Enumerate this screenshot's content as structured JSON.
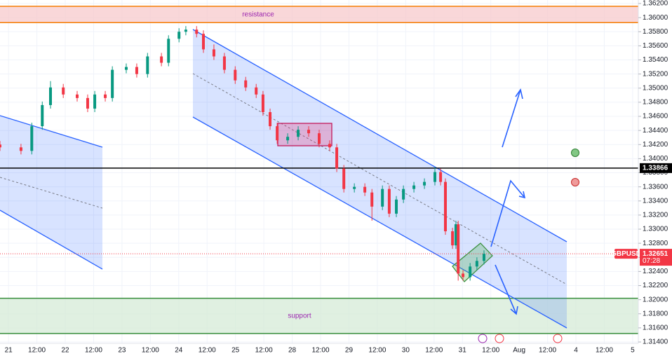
{
  "chart_data": {
    "type": "candlestick",
    "symbol": "GBPUSD",
    "x": [
      -0.3,
      0.44,
      0.82,
      1.19,
      1.48,
      1.93,
      2.42,
      2.79,
      3.04,
      3.41,
      3.66,
      4.15,
      4.52,
      4.9,
      5.39,
      5.64,
      6.01,
      6.25,
      6.63,
      6.87,
      7.24,
      7.61,
      7.99,
      8.36,
      8.73,
      8.97,
      9.22,
      9.47,
      9.84,
      10.21,
      10.58,
      10.95,
      11.32,
      11.57,
      11.82,
      12.19,
      12.56,
      12.81,
      13.18,
      13.42,
      13.67,
      13.92,
      14.29,
      14.66,
      15.03,
      15.23,
      15.4,
      15.65,
      15.77,
      15.85,
      16.02,
      16.27,
      16.51,
      16.76
    ],
    "open": [
      1.342,
      1.3416,
      1.3411,
      1.3446,
      1.3476,
      1.3501,
      1.3491,
      1.3486,
      1.3471,
      1.3491,
      1.3486,
      1.3526,
      1.353,
      1.352,
      1.3545,
      1.3536,
      1.357,
      1.358,
      1.3583,
      1.3577,
      1.3555,
      1.3545,
      1.3526,
      1.3511,
      1.3501,
      1.3491,
      1.3466,
      1.3446,
      1.3426,
      1.3431,
      1.3441,
      1.3436,
      1.3421,
      1.3416,
      1.3386,
      1.3357,
      1.336,
      1.3352,
      1.3332,
      1.3357,
      1.3322,
      1.3342,
      1.3357,
      1.3362,
      1.3367,
      1.3381,
      1.3367,
      1.3297,
      1.3277,
      1.3307,
      1.3237,
      1.3232,
      1.3247,
      1.3255
    ],
    "high": [
      1.3425,
      1.3421,
      1.3451,
      1.3481,
      1.351,
      1.3506,
      1.3496,
      1.3491,
      1.3496,
      1.3496,
      1.3531,
      1.3535,
      1.3535,
      1.355,
      1.355,
      1.3575,
      1.3585,
      1.3588,
      1.3588,
      1.3582,
      1.3562,
      1.355,
      1.3531,
      1.3516,
      1.3506,
      1.3496,
      1.3471,
      1.3451,
      1.3436,
      1.3446,
      1.3446,
      1.3441,
      1.3426,
      1.3421,
      1.3391,
      1.3365,
      1.3365,
      1.3357,
      1.3362,
      1.3362,
      1.3347,
      1.3362,
      1.3367,
      1.3372,
      1.3388,
      1.3386,
      1.3372,
      1.3302,
      1.3312,
      1.3312,
      1.3242,
      1.3252,
      1.326,
      1.327
    ],
    "low": [
      1.3411,
      1.3406,
      1.3406,
      1.3441,
      1.3471,
      1.3486,
      1.3481,
      1.3466,
      1.3466,
      1.3481,
      1.3481,
      1.3521,
      1.3515,
      1.3515,
      1.3531,
      1.3531,
      1.3565,
      1.3575,
      1.3572,
      1.355,
      1.354,
      1.3521,
      1.3506,
      1.3496,
      1.3486,
      1.3461,
      1.3441,
      1.3421,
      1.3421,
      1.3426,
      1.3431,
      1.3416,
      1.3411,
      1.3381,
      1.3352,
      1.3352,
      1.3347,
      1.3312,
      1.3327,
      1.3317,
      1.3317,
      1.3337,
      1.3352,
      1.3357,
      1.3362,
      1.3362,
      1.3292,
      1.3272,
      1.3272,
      1.3227,
      1.3227,
      1.3227,
      1.3242,
      1.325
    ],
    "close": [
      1.3416,
      1.3411,
      1.3446,
      1.3476,
      1.3501,
      1.3491,
      1.3486,
      1.3471,
      1.3491,
      1.3486,
      1.3526,
      1.353,
      1.352,
      1.3545,
      1.3536,
      1.357,
      1.358,
      1.3583,
      1.3577,
      1.3555,
      1.3545,
      1.3526,
      1.3511,
      1.3501,
      1.3491,
      1.3466,
      1.3446,
      1.3426,
      1.3431,
      1.3441,
      1.3436,
      1.3421,
      1.3416,
      1.3386,
      1.3357,
      1.336,
      1.3352,
      1.3332,
      1.3357,
      1.3322,
      1.3342,
      1.3357,
      1.3362,
      1.3367,
      1.3381,
      1.3367,
      1.3297,
      1.3277,
      1.3307,
      1.3237,
      1.3232,
      1.3247,
      1.3255,
      1.3265
    ],
    "up_color": "#089981",
    "down_color": "#f23645",
    "xlim": [
      -0.3,
      22.2
    ],
    "xticks": [
      {
        "value": 0,
        "label": "21"
      },
      {
        "value": 1,
        "label": "12:00"
      },
      {
        "value": 2,
        "label": "22"
      },
      {
        "value": 3,
        "label": "12:00"
      },
      {
        "value": 4,
        "label": "23"
      },
      {
        "value": 5,
        "label": "12:00"
      },
      {
        "value": 6,
        "label": "24"
      },
      {
        "value": 7,
        "label": "12:00"
      },
      {
        "value": 8,
        "label": "25"
      },
      {
        "value": 9,
        "label": "12:00"
      },
      {
        "value": 10,
        "label": "28"
      },
      {
        "value": 11,
        "label": "12:00"
      },
      {
        "value": 12,
        "label": "29"
      },
      {
        "value": 13,
        "label": "12:00"
      },
      {
        "value": 14,
        "label": "30"
      },
      {
        "value": 15,
        "label": "12:00"
      },
      {
        "value": 16,
        "label": "31"
      },
      {
        "value": 17,
        "label": "12:00"
      },
      {
        "value": 18,
        "label": "Aug"
      },
      {
        "value": 19,
        "label": "12:00"
      },
      {
        "value": 20,
        "label": "4"
      },
      {
        "value": 21,
        "label": "12:00"
      },
      {
        "value": 22,
        "label": "5"
      }
    ],
    "ylim": [
      1.3138,
      1.3625
    ],
    "yticks": [
      {
        "value": 1.314,
        "label": "1.31400"
      },
      {
        "value": 1.316,
        "label": "1.31600"
      },
      {
        "value": 1.318,
        "label": "1.31800"
      },
      {
        "value": 1.32,
        "label": "1.32000"
      },
      {
        "value": 1.322,
        "label": "1.32200"
      },
      {
        "value": 1.324,
        "label": "1.32400"
      },
      {
        "value": 1.326,
        "label": "1.32600"
      },
      {
        "value": 1.328,
        "label": "1.32800"
      },
      {
        "value": 1.33,
        "label": "1.33000"
      },
      {
        "value": 1.332,
        "label": "1.33200"
      },
      {
        "value": 1.334,
        "label": "1.33400"
      },
      {
        "value": 1.336,
        "label": "1.33600"
      },
      {
        "value": 1.338,
        "label": "1.33800"
      },
      {
        "value": 1.34,
        "label": "1.34000"
      },
      {
        "value": 1.342,
        "label": "1.34200"
      },
      {
        "value": 1.344,
        "label": "1.34400"
      },
      {
        "value": 1.346,
        "label": "1.34600"
      },
      {
        "value": 1.348,
        "label": "1.34800"
      },
      {
        "value": 1.35,
        "label": "1.35000"
      },
      {
        "value": 1.352,
        "label": "1.35200"
      },
      {
        "value": 1.354,
        "label": "1.35400"
      },
      {
        "value": 1.356,
        "label": "1.35600"
      },
      {
        "value": 1.358,
        "label": "1.35800"
      },
      {
        "value": 1.36,
        "label": "1.36000"
      },
      {
        "value": 1.362,
        "label": "1.36200"
      }
    ],
    "grid": true,
    "zones": [
      {
        "name": "resistance",
        "from": 1.3593,
        "to": 1.3616,
        "color": "#f7c6c9",
        "edge": "#f57c00",
        "label_color": "#9c27b0"
      },
      {
        "name": "support",
        "from": 1.3152,
        "to": 1.3202,
        "color": "#d3e9d4",
        "edge": "#388e3c",
        "label_color": "#9c27b0"
      }
    ],
    "level": 1.33866,
    "level_color": "#000000",
    "last_price": 1.32651,
    "countdown": "07:28"
  }
}
